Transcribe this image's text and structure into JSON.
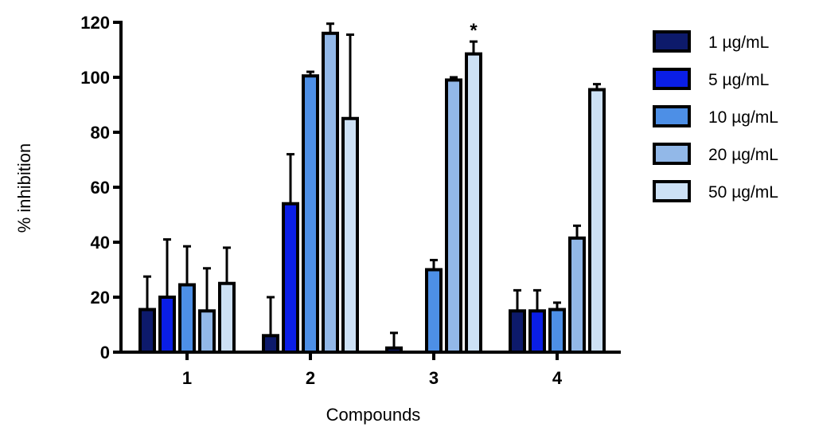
{
  "chart_data": {
    "type": "bar",
    "xlabel": "Compounds",
    "ylabel": "% inhibition",
    "categories": [
      "1",
      "2",
      "3",
      "4"
    ],
    "ylim": [
      0,
      120
    ],
    "yticks": [
      "0",
      "20",
      "40",
      "60",
      "80",
      "100",
      "120"
    ],
    "series": [
      {
        "name": "1 µg/mL",
        "color": "#0d1a6b",
        "values": [
          15.5,
          6,
          1.5,
          15
        ],
        "errors": [
          12,
          14,
          5.5,
          7.5
        ]
      },
      {
        "name": "5 µg/mL",
        "color": "#0a1ee6",
        "values": [
          20,
          54,
          null,
          15
        ],
        "errors": [
          21,
          18,
          null,
          7.5
        ]
      },
      {
        "name": "10 µg/mL",
        "color": "#4d8fe6",
        "values": [
          24.5,
          100.5,
          30,
          15.5
        ],
        "errors": [
          14,
          1.5,
          3.5,
          2.5
        ]
      },
      {
        "name": "20 µg/mL",
        "color": "#92b8e8",
        "values": [
          15,
          116,
          99,
          41.5
        ],
        "errors": [
          15.5,
          3.5,
          1,
          4.5
        ]
      },
      {
        "name": "50 µg/mL",
        "color": "#cde1f5",
        "values": [
          25,
          85,
          108.5,
          95.5
        ],
        "errors": [
          13,
          30.5,
          4.5,
          2
        ]
      }
    ],
    "annotations": [
      {
        "text": "*",
        "category": "3",
        "series": "50 µg/mL"
      }
    ],
    "legend_position": "right",
    "grid": false
  }
}
